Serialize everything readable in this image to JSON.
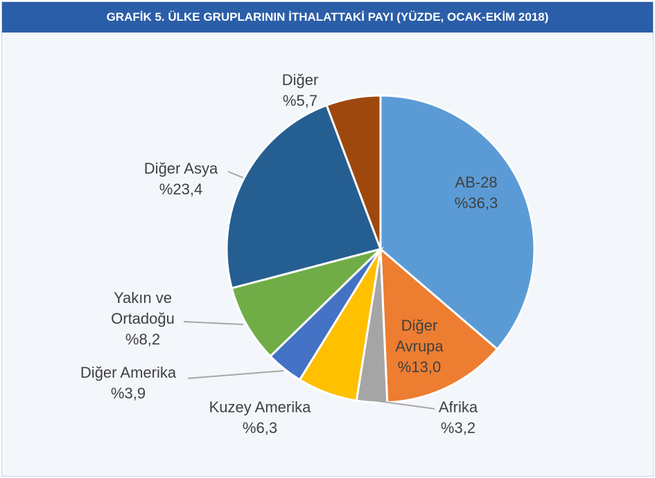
{
  "chart_data": {
    "type": "pie",
    "title": "GRAFİK 5. ÜLKE GRUPLARININ İTHALATTAKİ PAYI (YÜZDE, OCAK-EKİM 2018)",
    "categories": [
      "AB-28",
      "Diğer Avrupa",
      "Afrika",
      "Kuzey Amerika",
      "Diğer Amerika",
      "Yakın ve Ortadoğu",
      "Diğer Asya",
      "Diğer"
    ],
    "values": [
      36.3,
      13.0,
      3.2,
      6.3,
      3.9,
      8.2,
      23.4,
      5.7
    ],
    "value_labels": [
      "%36,3",
      "%13,0",
      "%3,2",
      "%6,3",
      "%3,9",
      "%8,2",
      "%23,4",
      "%5,7"
    ],
    "colors": [
      "#5b9bd5",
      "#ed7d31",
      "#a5a5a5",
      "#ffc000",
      "#4472c4",
      "#70ad47",
      "#255e91",
      "#9e480e"
    ]
  }
}
